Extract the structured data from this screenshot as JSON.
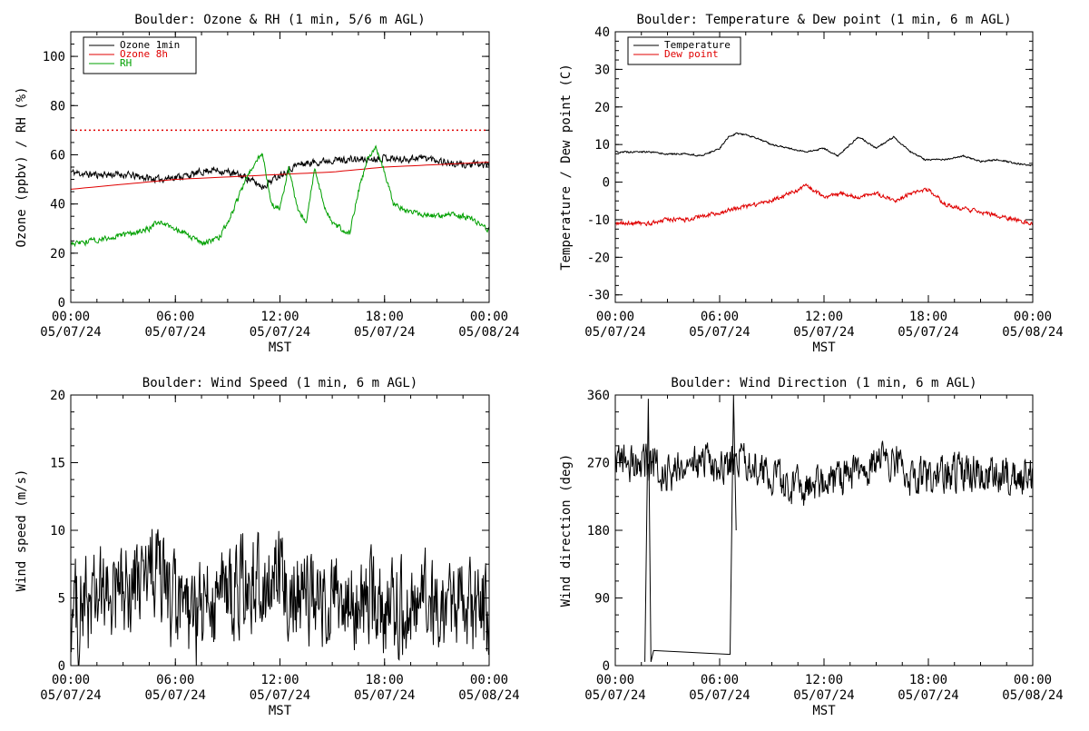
{
  "chart_data": [
    {
      "type": "line",
      "title": "Boulder: Ozone & RH (1 min, 5/6 m AGL)",
      "ylabel": "Ozone (ppbv) / RH (%)",
      "xlabel": "MST",
      "ylim": [
        0,
        110
      ],
      "yticks": [
        0,
        20,
        40,
        60,
        80,
        100
      ],
      "xticks": [
        {
          "hour": 0,
          "time": "00:00",
          "date": "05/07/24"
        },
        {
          "hour": 6,
          "time": "06:00",
          "date": "05/07/24"
        },
        {
          "hour": 12,
          "time": "12:00",
          "date": "05/07/24"
        },
        {
          "hour": 18,
          "time": "18:00",
          "date": "05/07/24"
        },
        {
          "hour": 24,
          "time": "00:00",
          "date": "05/08/24"
        }
      ],
      "legend": {
        "placement": "top-left"
      },
      "reference_line": {
        "y": 70,
        "style": "dotted",
        "color": "#e00000"
      },
      "series": [
        {
          "name": "Ozone 1min",
          "color": "#000000",
          "noise": 1.3,
          "x": [
            0,
            1,
            2,
            3,
            4,
            5,
            6,
            7,
            8,
            9,
            10,
            11,
            12,
            13,
            14,
            15,
            16,
            17,
            18,
            19,
            20,
            21,
            22,
            23,
            24
          ],
          "y": [
            53,
            52,
            52,
            52,
            51,
            50,
            51,
            52,
            54,
            53,
            51,
            47,
            52,
            56,
            57,
            58,
            58,
            58,
            59,
            58,
            59,
            58,
            56,
            56,
            56
          ]
        },
        {
          "name": "Ozone 8h",
          "color": "#e00000",
          "noise": 0,
          "x": [
            0,
            3,
            6,
            9,
            12,
            15,
            18,
            21,
            24
          ],
          "y": [
            46,
            48,
            50,
            51,
            52,
            53,
            55,
            56,
            57
          ]
        },
        {
          "name": "RH",
          "color": "#00a000",
          "noise": 1.0,
          "x": [
            0,
            0.5,
            2,
            3.5,
            4.5,
            5,
            6,
            7.5,
            8.5,
            9.3,
            9.8,
            10.5,
            11,
            11.5,
            12,
            12.5,
            13,
            13.5,
            14,
            14.5,
            15,
            16,
            16.5,
            17,
            17.5,
            18,
            18.5,
            19,
            20,
            21,
            22,
            23,
            24
          ],
          "y": [
            24,
            24,
            26,
            28,
            30,
            33,
            30,
            24,
            26,
            37,
            46,
            56,
            61,
            40,
            38,
            55,
            38,
            33,
            55,
            40,
            32,
            28,
            45,
            58,
            63,
            53,
            40,
            38,
            36,
            35,
            36,
            34,
            29
          ]
        }
      ]
    },
    {
      "type": "line",
      "title": "Boulder: Temperature & Dew point (1 min, 6 m AGL)",
      "ylabel": "Temperature / Dew point (C)",
      "xlabel": "MST",
      "ylim": [
        -32,
        40
      ],
      "yticks": [
        -30,
        -20,
        -10,
        0,
        10,
        20,
        30,
        40
      ],
      "xticks": [
        {
          "hour": 0,
          "time": "00:00",
          "date": "05/07/24"
        },
        {
          "hour": 6,
          "time": "06:00",
          "date": "05/07/24"
        },
        {
          "hour": 12,
          "time": "12:00",
          "date": "05/07/24"
        },
        {
          "hour": 18,
          "time": "18:00",
          "date": "05/07/24"
        },
        {
          "hour": 24,
          "time": "00:00",
          "date": "05/08/24"
        }
      ],
      "legend": {
        "placement": "top-left"
      },
      "series": [
        {
          "name": "Temperature",
          "color": "#000000",
          "noise": 0.2,
          "x": [
            0,
            2,
            3,
            4,
            5,
            6,
            6.5,
            7,
            8,
            9,
            10,
            11,
            12,
            12.8,
            13.5,
            14,
            15,
            16,
            17,
            17.8,
            18.5,
            19,
            20,
            21,
            22,
            23,
            24
          ],
          "y": [
            8,
            8,
            7.5,
            7.5,
            7,
            9,
            12,
            13,
            12,
            10,
            9,
            8,
            9,
            7,
            10,
            12,
            9,
            12,
            8,
            6,
            6,
            6,
            7,
            5.5,
            6,
            5,
            4.5
          ]
        },
        {
          "name": "Dew point",
          "color": "#e00000",
          "noise": 0.5,
          "x": [
            0,
            1,
            2,
            3,
            4,
            5,
            6,
            7,
            8,
            9,
            10,
            11,
            12,
            13,
            14,
            15,
            16,
            17,
            18,
            19,
            20,
            21,
            22,
            23,
            24
          ],
          "y": [
            -11,
            -11,
            -11,
            -10,
            -10,
            -9,
            -8,
            -7,
            -6,
            -5,
            -3,
            -1,
            -4,
            -3,
            -4,
            -3,
            -5,
            -3,
            -2,
            -6,
            -7,
            -8,
            -9,
            -10,
            -11
          ]
        }
      ]
    },
    {
      "type": "line",
      "title": "Boulder: Wind Speed (1 min, 6 m AGL)",
      "ylabel": "Wind speed (m/s)",
      "xlabel": "MST",
      "ylim": [
        0,
        20
      ],
      "yticks": [
        0,
        5,
        10,
        15,
        20
      ],
      "xticks": [
        {
          "hour": 0,
          "time": "00:00",
          "date": "05/07/24"
        },
        {
          "hour": 6,
          "time": "06:00",
          "date": "05/07/24"
        },
        {
          "hour": 12,
          "time": "12:00",
          "date": "05/07/24"
        },
        {
          "hour": 18,
          "time": "18:00",
          "date": "05/07/24"
        },
        {
          "hour": 24,
          "time": "00:00",
          "date": "05/08/24"
        }
      ],
      "series": [
        {
          "name": "",
          "color": "#000000",
          "noise": 3.2,
          "floor": 0,
          "ceil": 12,
          "x": [
            0,
            2,
            4,
            5,
            6,
            7,
            8,
            10,
            12,
            14,
            16,
            17,
            18,
            20,
            22,
            24
          ],
          "y": [
            4,
            5,
            6,
            7,
            4,
            3,
            5,
            6,
            6,
            5,
            4,
            5,
            4,
            5,
            4,
            4
          ]
        }
      ]
    },
    {
      "type": "line",
      "title": "Boulder: Wind Direction (1 min, 6 m AGL)",
      "ylabel": "Wind direction (deg)",
      "xlabel": "MST",
      "ylim": [
        0,
        360
      ],
      "yticks": [
        0,
        90,
        180,
        270,
        360
      ],
      "xticks": [
        {
          "hour": 0,
          "time": "00:00",
          "date": "05/07/24"
        },
        {
          "hour": 6,
          "time": "06:00",
          "date": "05/07/24"
        },
        {
          "hour": 12,
          "time": "12:00",
          "date": "05/07/24"
        },
        {
          "hour": 18,
          "time": "18:00",
          "date": "05/07/24"
        },
        {
          "hour": 24,
          "time": "00:00",
          "date": "05/08/24"
        }
      ],
      "spikes": [
        {
          "x": 1.7,
          "y": 5
        },
        {
          "x": 1.9,
          "y": 355
        },
        {
          "x": 2.05,
          "y": 5
        },
        {
          "x": 2.2,
          "y": 20
        },
        {
          "x": 6.6,
          "y": 15
        },
        {
          "x": 6.8,
          "y": 360
        },
        {
          "x": 6.95,
          "y": 180
        }
      ],
      "series": [
        {
          "name": "",
          "color": "#000000",
          "noise": 22,
          "floor": 190,
          "ceil": 350,
          "x": [
            0,
            1,
            2,
            3,
            4,
            5,
            6,
            7,
            8,
            9,
            10,
            11,
            12,
            13,
            14,
            15,
            16,
            17,
            18,
            19,
            20,
            21,
            22,
            23,
            24
          ],
          "y": [
            265,
            270,
            268,
            255,
            260,
            270,
            265,
            275,
            270,
            250,
            240,
            235,
            240,
            250,
            255,
            270,
            275,
            250,
            250,
            255,
            260,
            255,
            255,
            250,
            255
          ]
        }
      ]
    }
  ]
}
